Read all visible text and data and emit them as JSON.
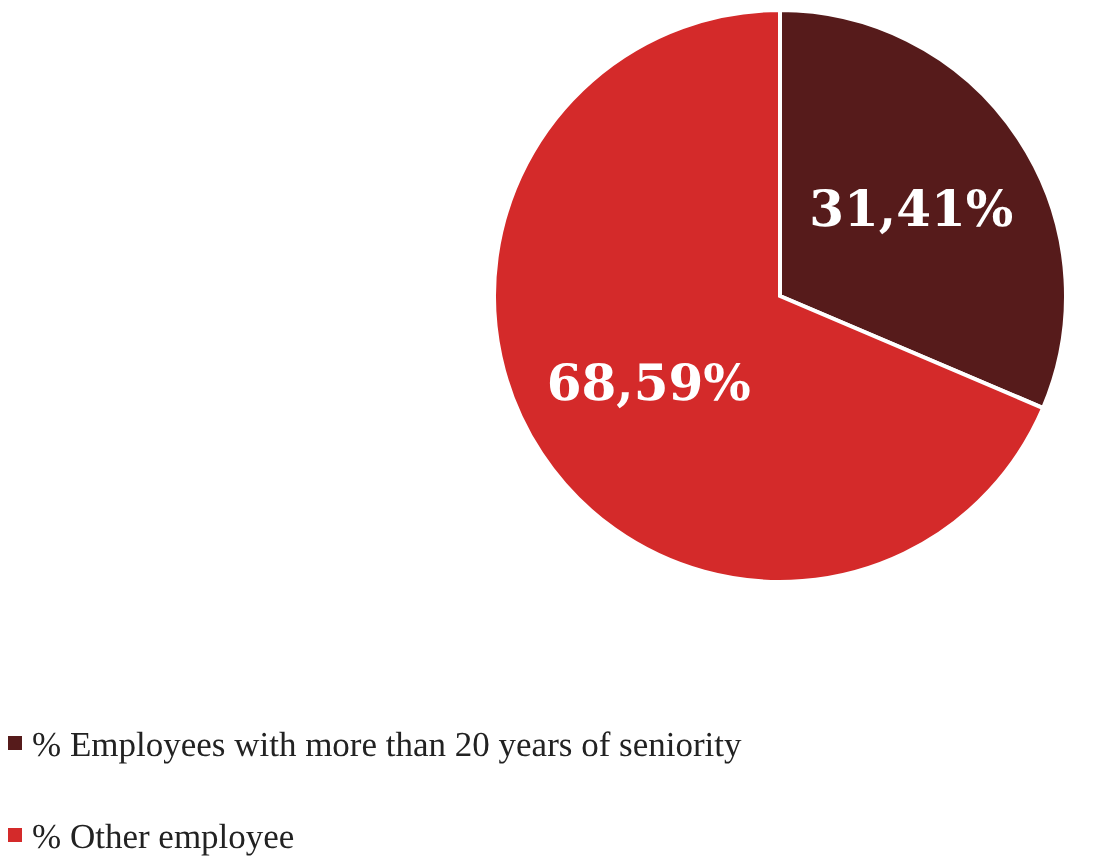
{
  "chart_data": {
    "type": "pie",
    "categories": [
      "% Employees with more than 20 years of seniority",
      "% Other employee"
    ],
    "values": [
      31.41,
      68.59
    ],
    "colors": [
      "#561b1b",
      "#d42a2a"
    ],
    "value_labels": [
      "31,41%",
      "68,59%"
    ],
    "legend": "bottom left"
  }
}
